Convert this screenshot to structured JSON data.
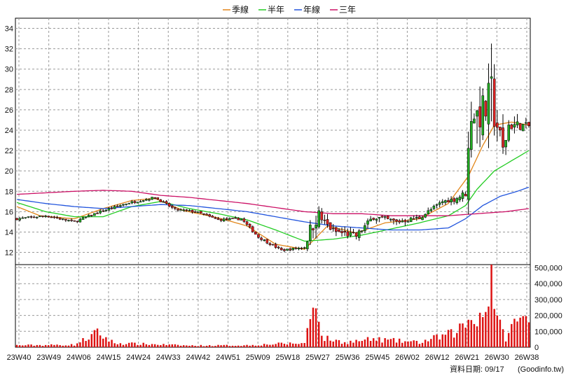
{
  "footer": {
    "date_label": "資料日期: 09/17",
    "source": "(Goodinfo.tw)"
  },
  "legend": [
    {
      "label": "季線",
      "color": "#e2861a"
    },
    {
      "label": "半年",
      "color": "#22cc22"
    },
    {
      "label": "年線",
      "color": "#2255dd"
    },
    {
      "label": "三年",
      "color": "#cc1166"
    }
  ],
  "chart_data": {
    "type": "candlestick",
    "x_tick_labels": [
      "23W40",
      "23W49",
      "24W06",
      "24W15",
      "24W24",
      "24W33",
      "24W42",
      "24W51",
      "25W09",
      "25W18",
      "25W27",
      "25W36",
      "25W45",
      "26W02",
      "26W12",
      "26W21",
      "26W30",
      "26W38"
    ],
    "price_axis": {
      "ticks": [
        12,
        14,
        16,
        18,
        20,
        22,
        24,
        26,
        28,
        30,
        32,
        34
      ],
      "ylim": [
        10.8,
        35
      ]
    },
    "volume_axis": {
      "ticks": [
        0,
        100000,
        200000,
        300000,
        400000,
        500000
      ],
      "tick_labels": [
        "0",
        "100,000",
        "200,000",
        "300,000",
        "400,000",
        "500,000"
      ],
      "ylim": [
        0,
        520000
      ]
    },
    "grid": true,
    "legend_position": "top-center",
    "up_color": "#22aa22",
    "down_color": "#dd2222",
    "volume_color": "#dd1111",
    "anchors": {
      "close": [
        [
          0,
          15.3
        ],
        [
          10,
          15.6
        ],
        [
          20,
          15.0
        ],
        [
          28,
          15.9
        ],
        [
          38,
          16.8
        ],
        [
          48,
          17.4
        ],
        [
          55,
          16.2
        ],
        [
          62,
          16.0
        ],
        [
          70,
          15.2
        ],
        [
          78,
          15.3
        ],
        [
          84,
          13.5
        ],
        [
          92,
          12.2
        ],
        [
          100,
          12.5
        ],
        [
          104,
          15.8
        ],
        [
          110,
          14.1
        ],
        [
          118,
          13.6
        ],
        [
          124,
          15.5
        ],
        [
          132,
          15.0
        ],
        [
          140,
          15.4
        ],
        [
          148,
          17.0
        ],
        [
          152,
          17.2
        ],
        [
          156,
          17.8
        ],
        [
          158,
          26.0
        ],
        [
          160,
          25.5
        ],
        [
          163,
          26.0
        ],
        [
          165,
          27.0
        ],
        [
          167,
          24.5
        ],
        [
          169,
          22.0
        ],
        [
          171,
          24.5
        ],
        [
          174,
          24.5
        ],
        [
          178,
          24.4
        ]
      ],
      "range": [
        [
          0,
          0.35
        ],
        [
          100,
          0.35
        ],
        [
          104,
          4.5
        ],
        [
          106,
          1.2
        ],
        [
          150,
          0.6
        ],
        [
          156,
          1.2
        ],
        [
          158,
          5.5
        ],
        [
          163,
          6.0
        ],
        [
          165,
          9.0
        ],
        [
          167,
          4.0
        ],
        [
          172,
          2.0
        ],
        [
          178,
          1.0
        ]
      ],
      "vol": [
        [
          0,
          12000
        ],
        [
          20,
          15000
        ],
        [
          28,
          90000
        ],
        [
          34,
          25000
        ],
        [
          48,
          18000
        ],
        [
          60,
          10000
        ],
        [
          80,
          12000
        ],
        [
          92,
          22000
        ],
        [
          100,
          25000
        ],
        [
          104,
          360000
        ],
        [
          106,
          60000
        ],
        [
          114,
          30000
        ],
        [
          124,
          50000
        ],
        [
          140,
          30000
        ],
        [
          152,
          90000
        ],
        [
          158,
          180000
        ],
        [
          163,
          220000
        ],
        [
          165,
          510000
        ],
        [
          167,
          160000
        ],
        [
          170,
          60000
        ],
        [
          174,
          180000
        ],
        [
          178,
          160000
        ]
      ],
      "ma_quarter": [
        [
          0,
          16.5
        ],
        [
          8,
          15.6
        ],
        [
          20,
          15.3
        ],
        [
          30,
          16.3
        ],
        [
          40,
          17.1
        ],
        [
          48,
          17.3
        ],
        [
          58,
          16.1
        ],
        [
          70,
          15.4
        ],
        [
          80,
          14.6
        ],
        [
          90,
          12.8
        ],
        [
          100,
          12.3
        ],
        [
          108,
          14.6
        ],
        [
          118,
          13.9
        ],
        [
          128,
          14.9
        ],
        [
          140,
          15.3
        ],
        [
          150,
          16.8
        ],
        [
          157,
          19.5
        ],
        [
          162,
          22.5
        ],
        [
          166,
          24.5
        ],
        [
          172,
          24.8
        ],
        [
          178,
          24.5
        ]
      ],
      "ma_half": [
        [
          0,
          16.9
        ],
        [
          10,
          16.0
        ],
        [
          20,
          15.5
        ],
        [
          30,
          15.5
        ],
        [
          40,
          16.5
        ],
        [
          50,
          17.0
        ],
        [
          60,
          16.3
        ],
        [
          70,
          15.8
        ],
        [
          80,
          15.2
        ],
        [
          90,
          14.2
        ],
        [
          100,
          13.1
        ],
        [
          110,
          13.3
        ],
        [
          120,
          13.7
        ],
        [
          130,
          14.3
        ],
        [
          140,
          14.9
        ],
        [
          150,
          15.6
        ],
        [
          156,
          16.6
        ],
        [
          160,
          18.2
        ],
        [
          166,
          20.0
        ],
        [
          172,
          21.0
        ],
        [
          178,
          22.0
        ]
      ],
      "ma_year": [
        [
          0,
          17.2
        ],
        [
          10,
          16.8
        ],
        [
          20,
          16.5
        ],
        [
          30,
          16.3
        ],
        [
          40,
          16.5
        ],
        [
          50,
          16.7
        ],
        [
          60,
          16.6
        ],
        [
          70,
          16.3
        ],
        [
          80,
          16.0
        ],
        [
          90,
          15.5
        ],
        [
          100,
          15.0
        ],
        [
          110,
          14.6
        ],
        [
          120,
          14.4
        ],
        [
          130,
          14.2
        ],
        [
          140,
          14.2
        ],
        [
          150,
          14.4
        ],
        [
          156,
          15.3
        ],
        [
          162,
          16.6
        ],
        [
          168,
          17.5
        ],
        [
          174,
          18.0
        ],
        [
          178,
          18.4
        ]
      ],
      "ma_3y": [
        [
          0,
          17.7
        ],
        [
          20,
          18.0
        ],
        [
          30,
          18.1
        ],
        [
          40,
          18.0
        ],
        [
          50,
          17.6
        ],
        [
          60,
          17.4
        ],
        [
          70,
          17.1
        ],
        [
          80,
          16.8
        ],
        [
          90,
          16.4
        ],
        [
          100,
          16.0
        ],
        [
          110,
          15.8
        ],
        [
          120,
          15.8
        ],
        [
          130,
          15.6
        ],
        [
          140,
          15.6
        ],
        [
          150,
          15.6
        ],
        [
          160,
          15.8
        ],
        [
          170,
          16.0
        ],
        [
          178,
          16.3
        ]
      ]
    }
  }
}
